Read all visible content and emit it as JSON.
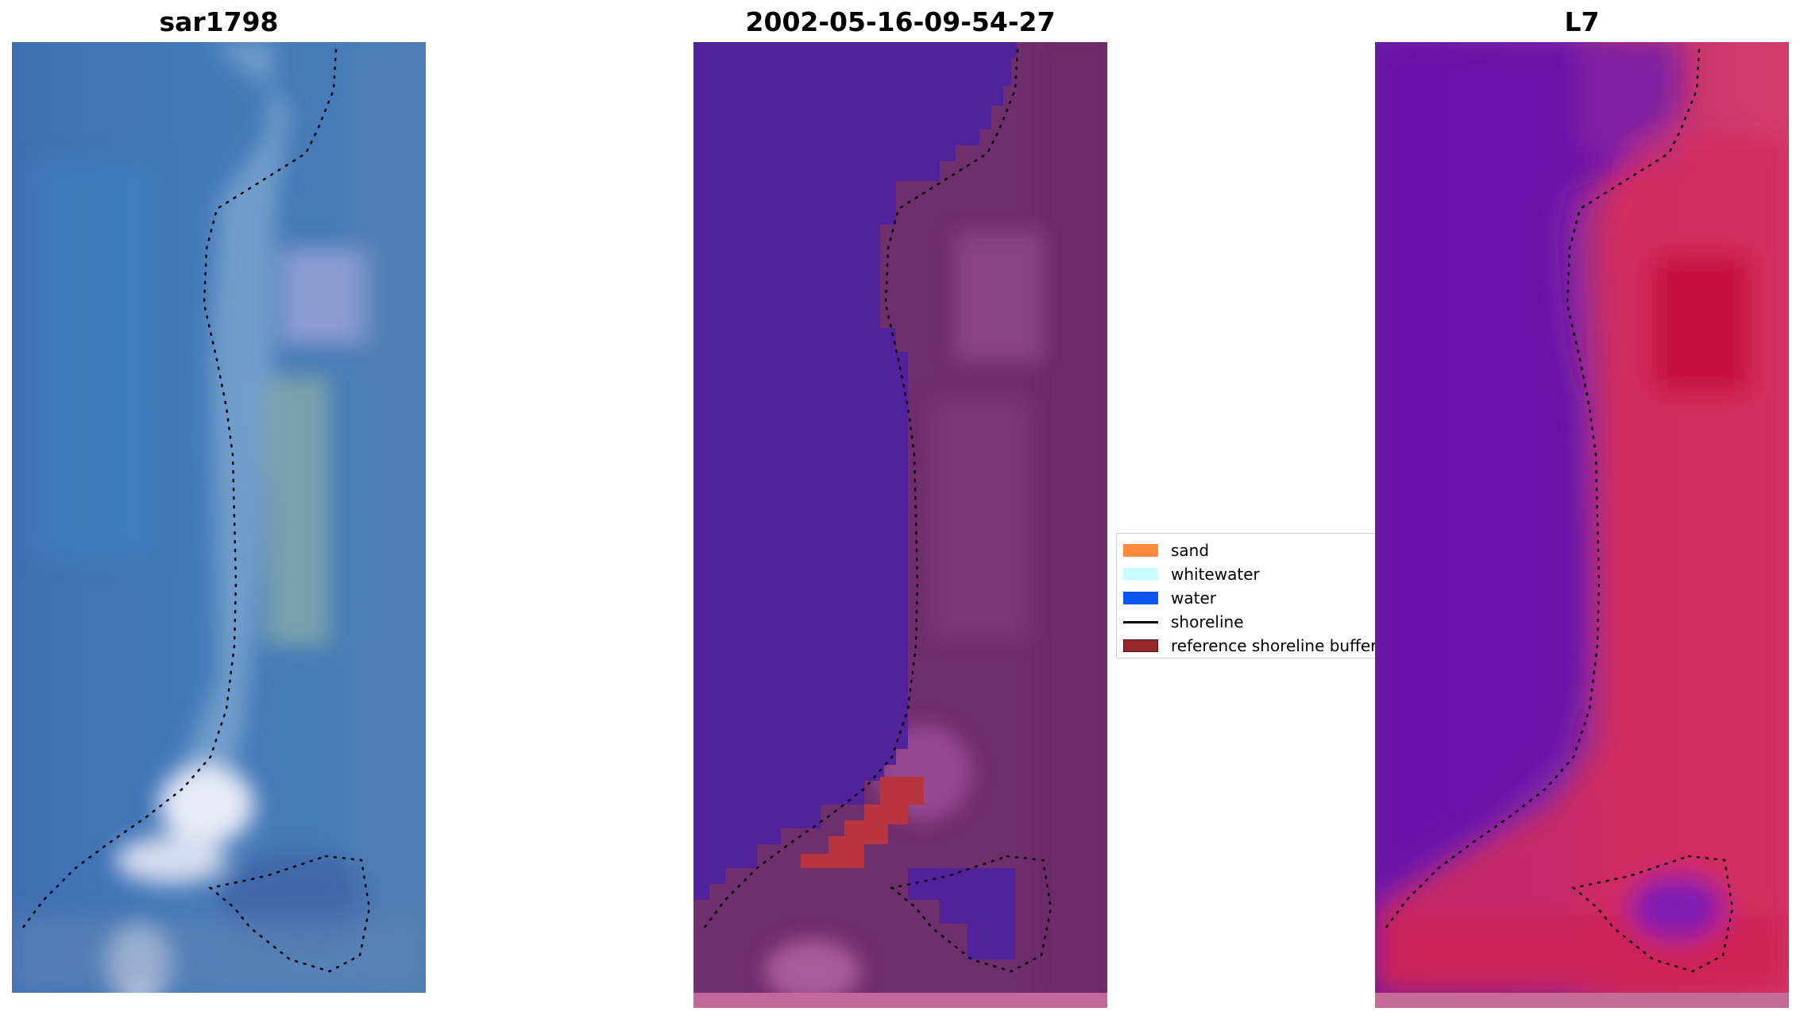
{
  "panels": [
    {
      "title": "sar1798"
    },
    {
      "title": "2002-05-16-09-54-27"
    },
    {
      "title": "L7"
    }
  ],
  "legend": {
    "items": [
      {
        "label": "sand",
        "color": "#ff8a3d"
      },
      {
        "label": "whitewater",
        "color": "#c8fbfb"
      },
      {
        "label": "water",
        "color": "#0a55ee"
      },
      {
        "label": "shoreline",
        "color": "#000000"
      },
      {
        "label": "reference shoreline buffer",
        "color": "#96282e"
      }
    ]
  }
}
